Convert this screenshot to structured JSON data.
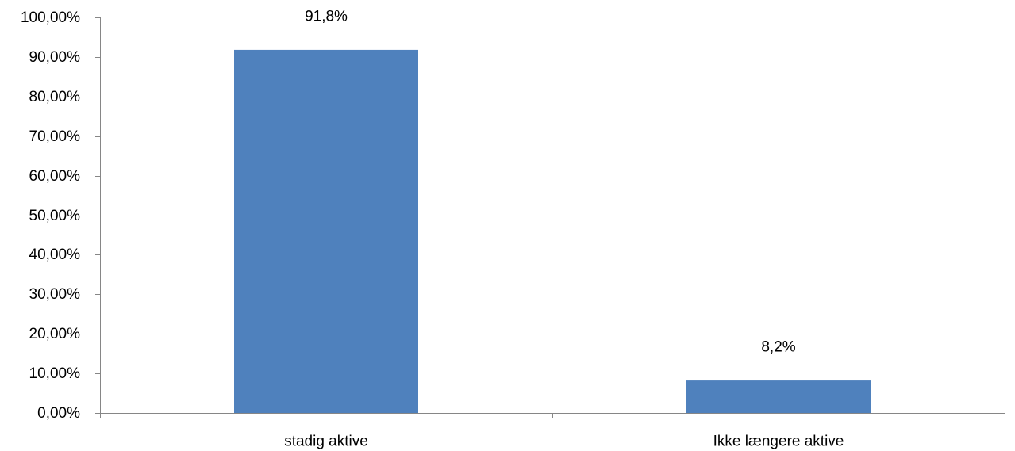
{
  "chart_data": {
    "type": "bar",
    "title": "",
    "xlabel": "",
    "ylabel": "",
    "categories": [
      "stadig aktive",
      "Ikke længere aktive"
    ],
    "values": [
      91.8,
      8.2
    ],
    "data_labels": [
      "91,8%",
      "8,2%"
    ],
    "ylim": [
      0,
      100
    ],
    "y_ticks": [
      0,
      10,
      20,
      30,
      40,
      50,
      60,
      70,
      80,
      90,
      100
    ],
    "y_tick_labels": [
      "0,00%",
      "10,00%",
      "20,00%",
      "30,00%",
      "40,00%",
      "50,00%",
      "60,00%",
      "70,00%",
      "80,00%",
      "90,00%",
      "100,00%"
    ],
    "grid": false,
    "legend": "none",
    "colors": {
      "bar": "#4F81BD",
      "axis": "#868686",
      "text": "#000000"
    }
  }
}
